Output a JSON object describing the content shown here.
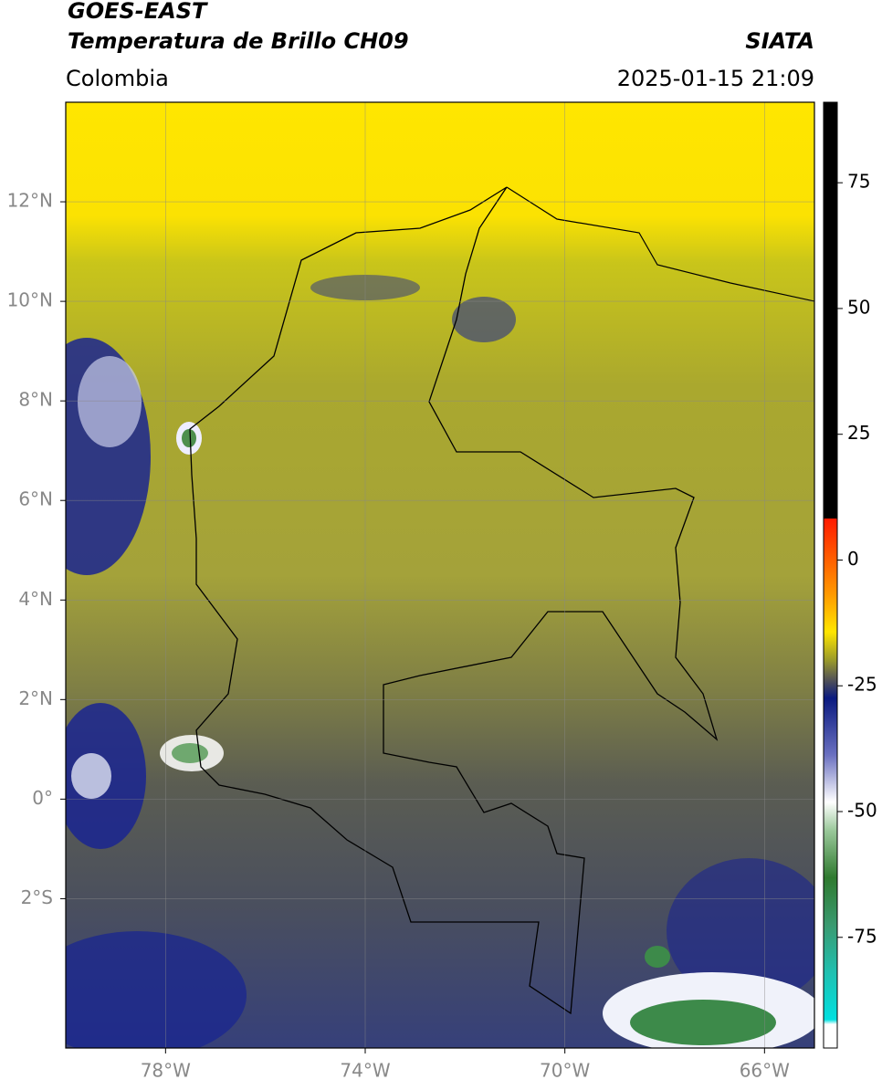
{
  "header": {
    "satellite": "GOES-EAST",
    "product": "Temperatura de Brillo CH09",
    "source": "SIATA",
    "region": "Colombia",
    "datetime": "2025-01-15 21:09"
  },
  "map": {
    "xlim": [
      -80,
      -65
    ],
    "ylim": [
      -5,
      14
    ],
    "grid": true,
    "xticks": [
      {
        "value": -78,
        "label": "78°W"
      },
      {
        "value": -74,
        "label": "74°W"
      },
      {
        "value": -70,
        "label": "70°W"
      },
      {
        "value": -66,
        "label": "66°W"
      }
    ],
    "yticks": [
      {
        "value": 12,
        "label": "12°N"
      },
      {
        "value": 10,
        "label": "10°N"
      },
      {
        "value": 8,
        "label": "8°N"
      },
      {
        "value": 6,
        "label": "6°N"
      },
      {
        "value": 4,
        "label": "4°N"
      },
      {
        "value": 2,
        "label": "2°N"
      },
      {
        "value": 0,
        "label": "0°"
      },
      {
        "value": -2,
        "label": "2°S"
      }
    ]
  },
  "colorbar": {
    "lim": [
      -97,
      91
    ],
    "ticks": [
      75,
      50,
      25,
      0,
      -25,
      -50,
      -75
    ]
  }
}
